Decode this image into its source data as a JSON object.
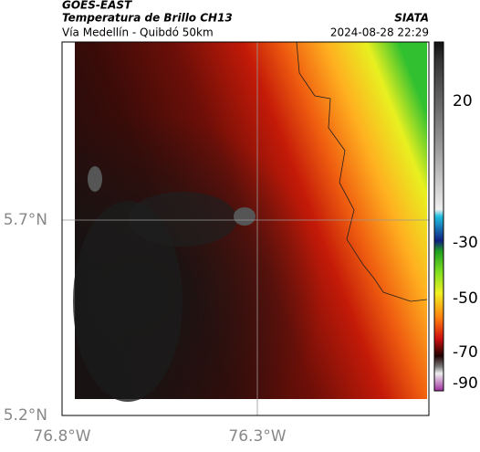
{
  "header": {
    "satellite": "GOES-EAST",
    "product": "Temperatura de Brillo CH13",
    "source": "SIATA",
    "route": "Vía Medellín - Quibdó 50km",
    "datetime": "2024-08-28 22:29"
  },
  "axes": {
    "y_labels": [
      "5.7°N",
      "5.2°N"
    ],
    "x_labels": [
      "76.8°W",
      "76.3°W"
    ]
  },
  "colorbar": {
    "ticks": [
      "20",
      "-30",
      "-50",
      "-70",
      "-90"
    ]
  }
}
